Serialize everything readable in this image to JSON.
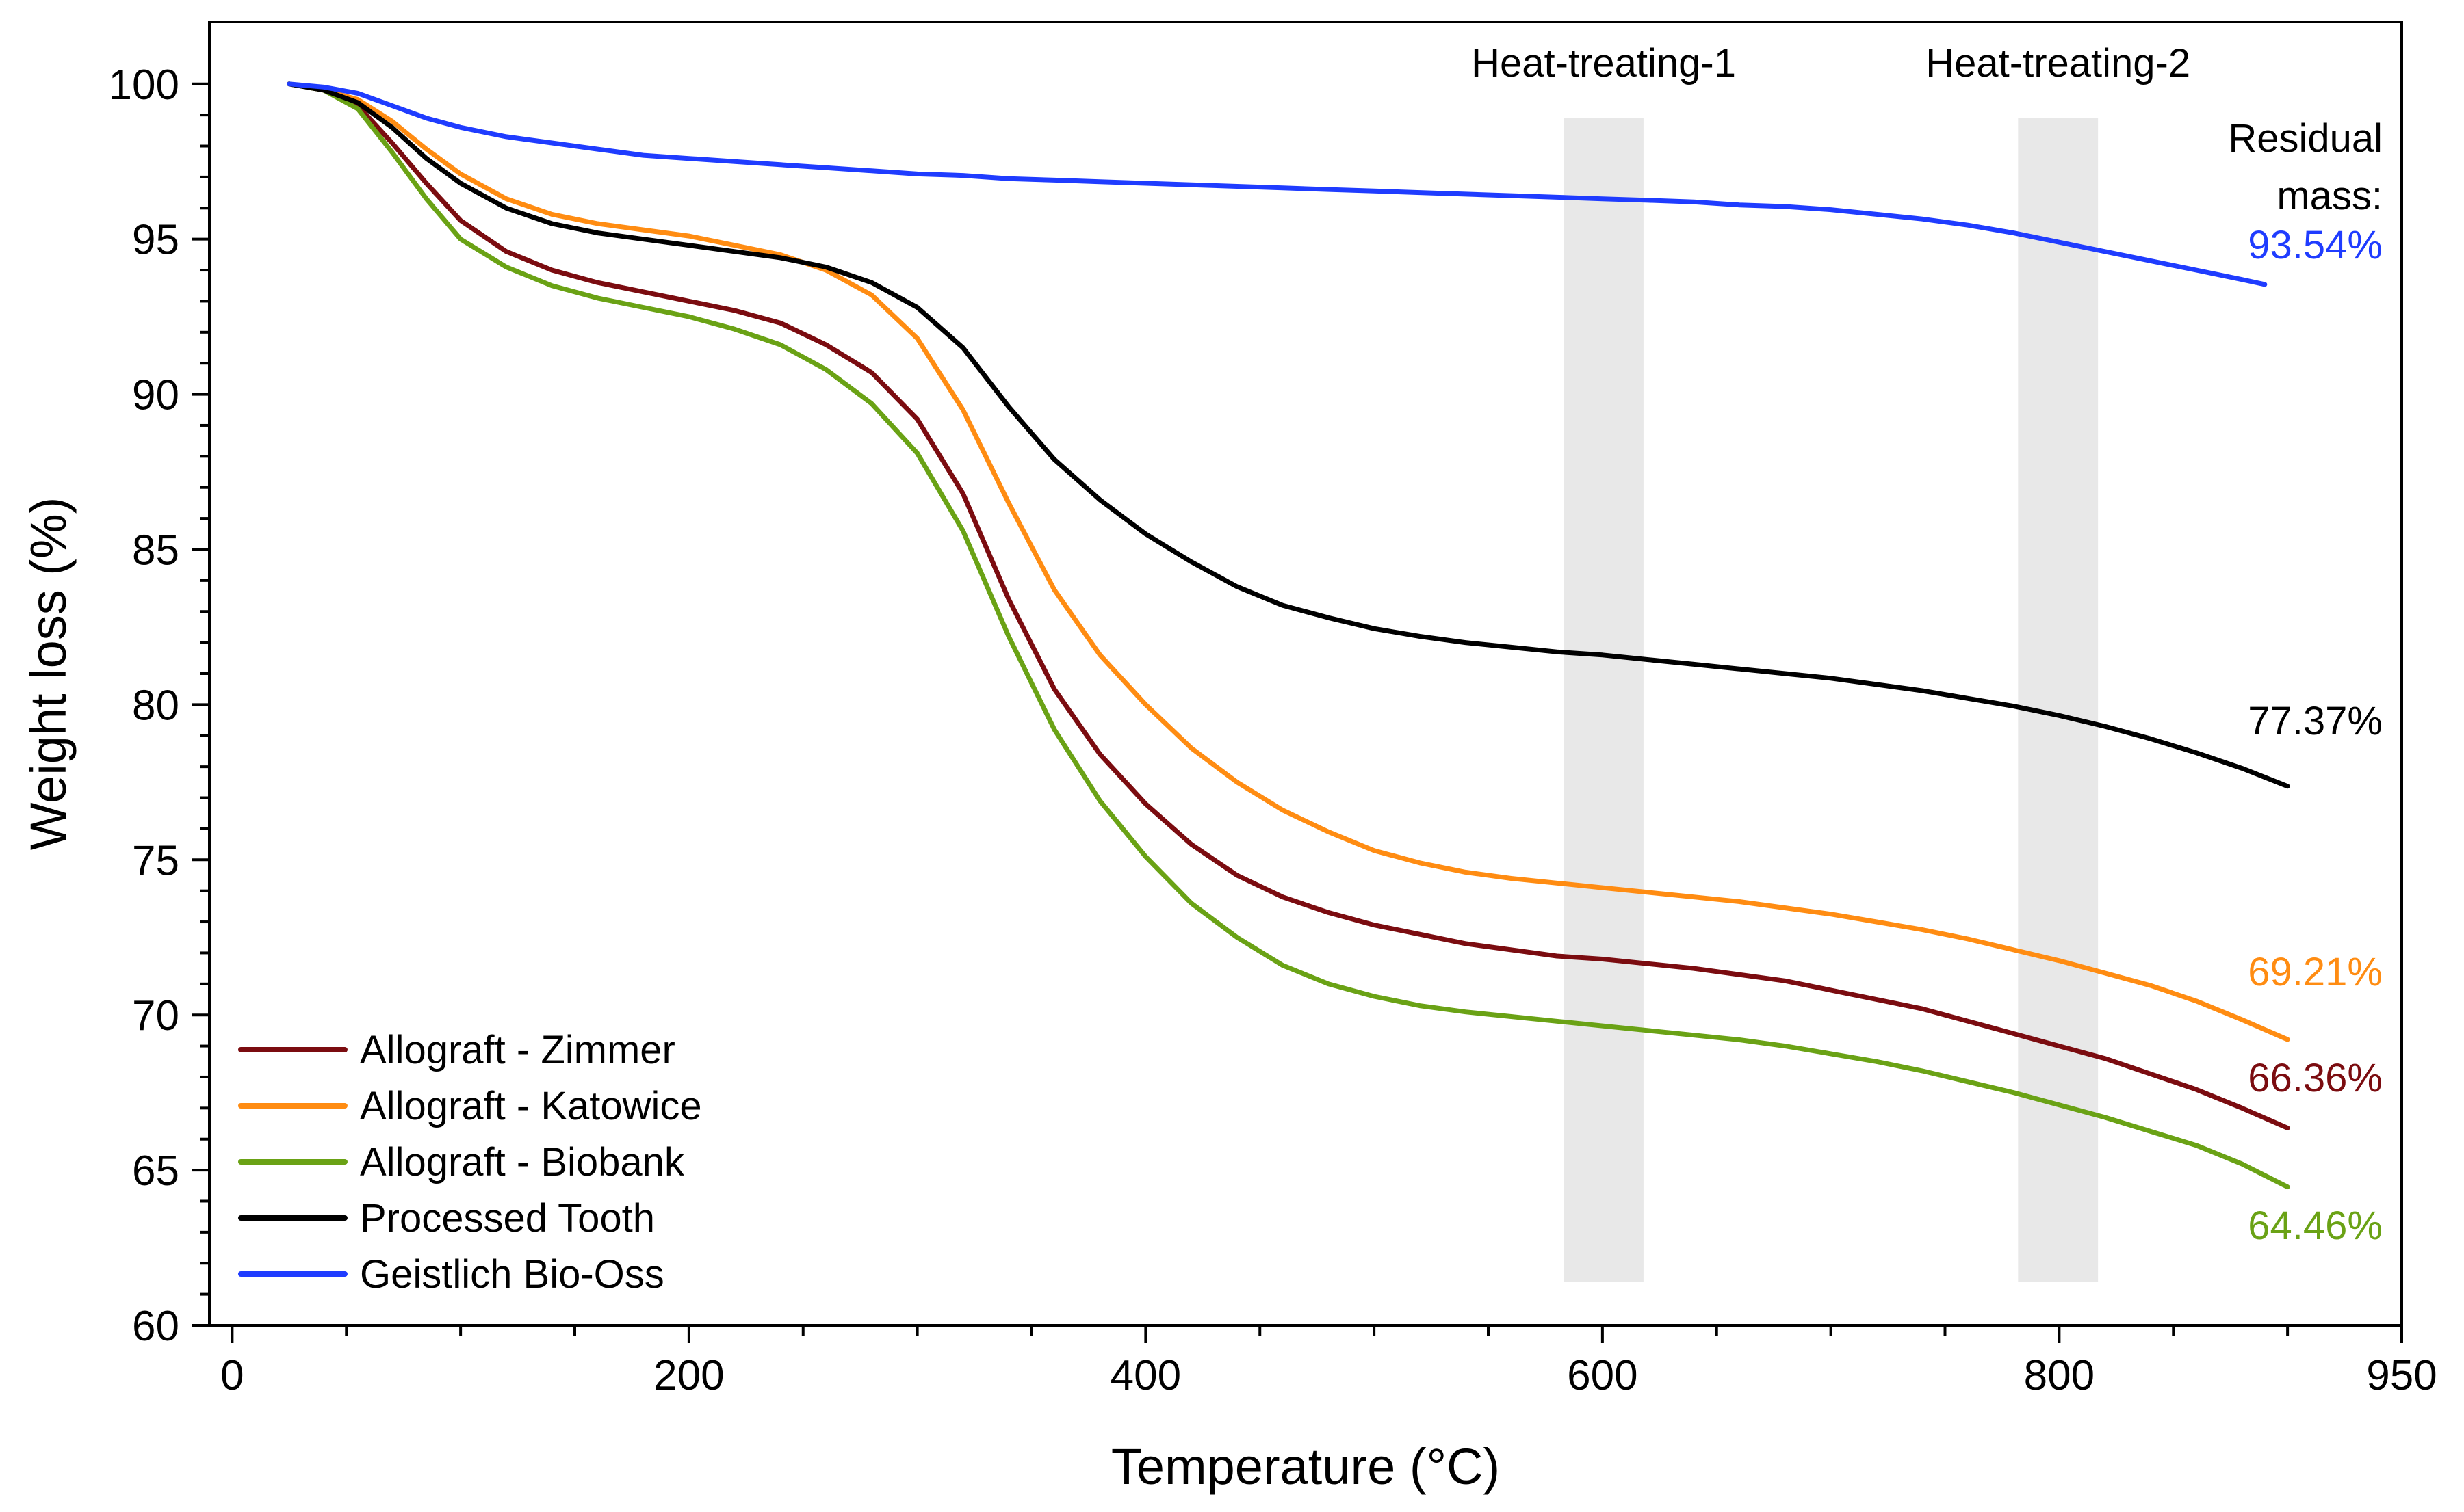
{
  "chart_data": {
    "type": "line",
    "title": "",
    "xlabel": "Temperature (°C)",
    "ylabel": "Weight loss (%)",
    "xlim": [
      -10,
      950
    ],
    "ylim": [
      60,
      102
    ],
    "x_ticks": [
      0,
      200,
      400,
      600,
      800,
      950
    ],
    "x_tick_labels": [
      "0",
      "200",
      "400",
      "600",
      "800",
      "950"
    ],
    "y_ticks": [
      60,
      65,
      70,
      75,
      80,
      85,
      90,
      95,
      100
    ],
    "y_tick_labels": [
      "60",
      "65",
      "70",
      "75",
      "80",
      "85",
      "90",
      "95",
      "100"
    ],
    "grid": false,
    "legend_position": "bottom-left",
    "series": [
      {
        "name": "Allograft - Zimmer",
        "color": "#7b0c10",
        "x": [
          25,
          40,
          55,
          70,
          85,
          100,
          120,
          140,
          160,
          180,
          200,
          220,
          240,
          260,
          280,
          300,
          320,
          340,
          360,
          380,
          400,
          420,
          440,
          460,
          480,
          500,
          520,
          540,
          560,
          580,
          600,
          620,
          640,
          660,
          680,
          700,
          720,
          740,
          760,
          780,
          800,
          820,
          840,
          860,
          880,
          900
        ],
        "y": [
          100,
          99.8,
          99.3,
          98.1,
          96.8,
          95.6,
          94.6,
          94.0,
          93.6,
          93.3,
          93.0,
          92.7,
          92.3,
          91.6,
          90.7,
          89.2,
          86.8,
          83.4,
          80.5,
          78.4,
          76.8,
          75.5,
          74.5,
          73.8,
          73.3,
          72.9,
          72.6,
          72.3,
          72.1,
          71.9,
          71.8,
          71.65,
          71.5,
          71.3,
          71.1,
          70.8,
          70.5,
          70.2,
          69.8,
          69.4,
          69.0,
          68.6,
          68.1,
          67.6,
          67.0,
          66.36
        ],
        "end_label": "66.36%"
      },
      {
        "name": "Allograft - Katowice",
        "color": "#ff8c12",
        "x": [
          25,
          40,
          55,
          70,
          85,
          100,
          120,
          140,
          160,
          180,
          200,
          220,
          240,
          260,
          280,
          300,
          320,
          340,
          360,
          380,
          400,
          420,
          440,
          460,
          480,
          500,
          520,
          540,
          560,
          580,
          600,
          620,
          640,
          660,
          680,
          700,
          720,
          740,
          760,
          780,
          800,
          820,
          840,
          860,
          880,
          900
        ],
        "y": [
          100,
          99.8,
          99.5,
          98.8,
          97.9,
          97.1,
          96.3,
          95.8,
          95.5,
          95.3,
          95.1,
          94.8,
          94.5,
          94.0,
          93.2,
          91.8,
          89.5,
          86.5,
          83.7,
          81.6,
          80.0,
          78.6,
          77.5,
          76.6,
          75.9,
          75.3,
          74.9,
          74.6,
          74.4,
          74.25,
          74.1,
          73.95,
          73.8,
          73.65,
          73.45,
          73.25,
          73.0,
          72.75,
          72.45,
          72.1,
          71.75,
          71.35,
          70.95,
          70.45,
          69.85,
          69.21
        ],
        "end_label": "69.21%"
      },
      {
        "name": "Allograft - Biobank",
        "color": "#6aa215",
        "x": [
          25,
          40,
          55,
          70,
          85,
          100,
          120,
          140,
          160,
          180,
          200,
          220,
          240,
          260,
          280,
          300,
          320,
          340,
          360,
          380,
          400,
          420,
          440,
          460,
          480,
          500,
          520,
          540,
          560,
          580,
          600,
          620,
          640,
          660,
          680,
          700,
          720,
          740,
          760,
          780,
          800,
          820,
          840,
          860,
          880,
          900
        ],
        "y": [
          100,
          99.8,
          99.2,
          97.8,
          96.3,
          95.0,
          94.1,
          93.5,
          93.1,
          92.8,
          92.5,
          92.1,
          91.6,
          90.8,
          89.7,
          88.1,
          85.6,
          82.2,
          79.2,
          76.9,
          75.1,
          73.6,
          72.5,
          71.6,
          71.0,
          70.6,
          70.3,
          70.1,
          69.95,
          69.8,
          69.65,
          69.5,
          69.35,
          69.2,
          69.0,
          68.75,
          68.5,
          68.2,
          67.85,
          67.5,
          67.1,
          66.7,
          66.25,
          65.8,
          65.2,
          64.46
        ],
        "end_label": "64.46%"
      },
      {
        "name": "Processed Tooth",
        "color": "#000000",
        "x": [
          25,
          40,
          55,
          70,
          85,
          100,
          120,
          140,
          160,
          180,
          200,
          220,
          240,
          260,
          280,
          300,
          320,
          340,
          360,
          380,
          400,
          420,
          440,
          460,
          480,
          500,
          520,
          540,
          560,
          580,
          600,
          620,
          640,
          660,
          680,
          700,
          720,
          740,
          760,
          780,
          800,
          820,
          840,
          860,
          880,
          900
        ],
        "y": [
          100,
          99.8,
          99.4,
          98.6,
          97.6,
          96.8,
          96.0,
          95.5,
          95.2,
          95.0,
          94.8,
          94.6,
          94.4,
          94.1,
          93.6,
          92.8,
          91.5,
          89.6,
          87.9,
          86.6,
          85.5,
          84.6,
          83.8,
          83.2,
          82.8,
          82.45,
          82.2,
          82.0,
          81.85,
          81.7,
          81.6,
          81.45,
          81.3,
          81.15,
          81.0,
          80.85,
          80.65,
          80.45,
          80.2,
          79.95,
          79.65,
          79.3,
          78.9,
          78.45,
          77.95,
          77.37
        ],
        "end_label": "77.37%"
      },
      {
        "name": "Geistlich Bio-Oss",
        "color": "#1f3cff",
        "x": [
          25,
          40,
          55,
          70,
          85,
          100,
          120,
          140,
          160,
          180,
          200,
          220,
          240,
          260,
          280,
          300,
          320,
          340,
          360,
          380,
          400,
          420,
          440,
          460,
          480,
          500,
          520,
          540,
          560,
          580,
          600,
          620,
          640,
          660,
          680,
          700,
          720,
          740,
          760,
          780,
          800,
          820,
          840,
          860,
          880,
          890
        ],
        "y": [
          100,
          99.9,
          99.7,
          99.3,
          98.9,
          98.6,
          98.3,
          98.1,
          97.9,
          97.7,
          97.6,
          97.5,
          97.4,
          97.3,
          97.2,
          97.1,
          97.05,
          96.95,
          96.9,
          96.85,
          96.8,
          96.75,
          96.7,
          96.65,
          96.6,
          96.55,
          96.5,
          96.45,
          96.4,
          96.35,
          96.3,
          96.25,
          96.2,
          96.1,
          96.05,
          95.95,
          95.8,
          95.65,
          95.45,
          95.2,
          94.9,
          94.6,
          94.3,
          94.0,
          93.7,
          93.54
        ],
        "end_label": "93.54%"
      }
    ],
    "shaded_regions": [
      {
        "label": "Heat-treating-1",
        "x_start": 583,
        "x_end": 618,
        "y_start": 61.4,
        "y_end": 98.9
      },
      {
        "label": "Heat-treating-2",
        "x_start": 782,
        "x_end": 817,
        "y_start": 61.4,
        "y_end": 98.9
      }
    ],
    "annotations": {
      "residual_title_line1": "Residual",
      "residual_title_line2": "mass:"
    }
  }
}
